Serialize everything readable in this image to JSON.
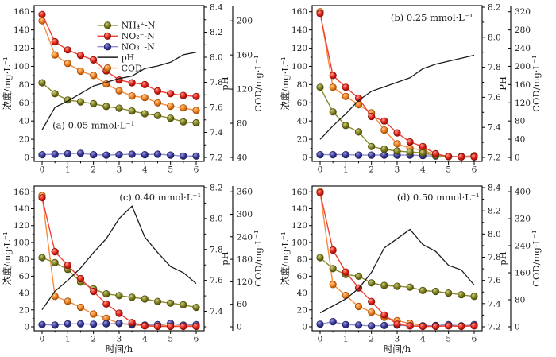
{
  "figure": {
    "background": "#ffffff",
    "colors": {
      "nh4": {
        "line": "#8a8a2b",
        "fill": "#7f7f1e",
        "edge": "#4c4c0a",
        "light": "#cdcd85"
      },
      "no2": {
        "line": "#ef4135",
        "fill": "#e32119",
        "edge": "#8c0f08",
        "light": "#ff9e8c"
      },
      "no3": {
        "line": "#8d8dd0",
        "fill": "#3a3a9c",
        "edge": "#1d1d5e",
        "light": "#9d9de0"
      },
      "cod": {
        "line": "#f68b3c",
        "fill": "#f48120",
        "edge": "#a04d05",
        "light": "#ffc98e"
      },
      "ph": {
        "line": "#1c1c1c"
      }
    }
  },
  "chart_data": {
    "type": "line",
    "x": [
      0,
      0.5,
      1,
      1.5,
      2,
      2.5,
      3,
      3.5,
      4,
      4.5,
      5,
      5.5,
      6
    ],
    "x_ticks": [
      0,
      1,
      2,
      3,
      4,
      5,
      6
    ],
    "conc_ticks": [
      0,
      20,
      40,
      60,
      80,
      100,
      120,
      140,
      160
    ],
    "conc_axis_max": 165,
    "legend_position": "inside panel (a), upper middle",
    "grid": false,
    "legend_items": [
      {
        "key": "nh4",
        "label": "NH₄⁺-N",
        "type": "marker-line"
      },
      {
        "key": "no2",
        "label": "NO₂⁻-N",
        "type": "marker-line"
      },
      {
        "key": "no3",
        "label": "NO₃⁻-N",
        "type": "marker-line"
      },
      {
        "key": "ph",
        "label": "pH",
        "type": "line"
      },
      {
        "key": "cod",
        "label": "COD",
        "type": "marker-line"
      }
    ],
    "panels": [
      {
        "id": "a",
        "title": "(a)  0.05 mmol·L⁻¹",
        "title_pos": {
          "x": 2.0,
          "conc": 32
        },
        "y_title": "浓度/mg·L⁻¹",
        "x_title": "",
        "ph_label": "pH",
        "cod_label": "COD/mg·L⁻¹",
        "legend": true,
        "ph_axis": {
          "min": 7.2,
          "max": 8.4,
          "ticks": [
            7.2,
            7.4,
            7.6,
            7.8,
            8.0,
            8.2,
            8.4
          ]
        },
        "cod_axis": {
          "min": 40,
          "max": 216,
          "ticks": [
            40,
            80,
            120,
            160,
            200
          ]
        },
        "series": {
          "nh4": [
            82,
            70,
            63,
            61,
            59,
            56,
            54,
            51,
            48,
            46,
            43,
            39,
            38
          ],
          "no2": [
            157,
            127,
            118,
            112,
            107,
            95,
            85,
            82,
            80,
            73,
            70,
            68,
            67
          ],
          "no3": [
            3,
            3.5,
            4,
            4.5,
            3,
            2.5,
            3,
            3.5,
            3,
            3.5,
            2.5,
            1.5,
            1.5
          ],
          "ph": [
            7.42,
            7.6,
            7.65,
            7.71,
            7.77,
            7.8,
            7.83,
            7.85,
            7.91,
            7.93,
            7.96,
            8.02,
            8.04
          ],
          "cod": [
            200,
            160,
            150,
            141,
            136,
            126,
            118,
            112,
            110,
            104,
            100,
            98,
            95
          ]
        }
      },
      {
        "id": "b",
        "title": "(b)  0.25 mmol·L⁻¹",
        "title_pos": {
          "x": 4.35,
          "conc": 150
        },
        "y_title": "浓度/mg·L⁻¹",
        "x_title": "",
        "ph_label": "PH",
        "cod_label": "COD/mg·L⁻¹",
        "legend": false,
        "ph_axis": {
          "min": 7.2,
          "max": 8.2,
          "ticks": [
            7.2,
            7.4,
            7.6,
            7.8,
            8.0,
            8.2
          ]
        },
        "cod_axis": {
          "min": 0,
          "max": 330,
          "ticks": [
            0,
            40,
            80,
            120,
            160,
            200,
            240,
            280,
            320
          ]
        },
        "series": {
          "nh4": [
            77,
            50,
            35,
            28,
            12,
            9,
            7,
            6,
            5,
            2,
            1,
            0.5,
            0.5
          ],
          "no2": [
            158,
            90,
            77,
            65,
            45,
            40,
            27,
            17,
            12,
            4,
            1,
            0.5,
            0.5
          ],
          "no3": [
            3,
            3,
            3,
            2.5,
            2.5,
            2.5,
            2.5,
            2.5,
            2,
            1.5,
            1,
            1,
            1
          ],
          "ph": [
            7.32,
            7.41,
            7.49,
            7.58,
            7.64,
            7.67,
            7.7,
            7.73,
            7.79,
            7.82,
            7.84,
            7.86,
            7.88
          ],
          "cod": [
            320,
            154,
            134,
            116,
            98,
            60,
            30,
            20,
            16,
            6,
            2,
            2,
            4
          ]
        }
      },
      {
        "id": "c",
        "title": "(c)  0.40 mmol·L⁻¹",
        "title_pos": {
          "x": 4.6,
          "conc": 150
        },
        "y_title": "浓度/mg·L⁻¹",
        "x_title": "时间/h",
        "ph_label": "pH",
        "cod_label": "COD/mg·L⁻¹",
        "legend": false,
        "ph_axis": {
          "min": 7.3,
          "max": 8.2,
          "ticks": [
            7.4,
            7.6,
            7.8,
            8.0,
            8.2
          ]
        },
        "cod_axis": {
          "min": 0,
          "max": 371,
          "ticks": [
            0,
            60,
            120,
            180,
            240,
            300,
            360
          ]
        },
        "series": {
          "nh4": [
            82,
            76,
            68,
            53,
            45,
            39,
            37,
            35,
            33,
            30,
            28,
            26,
            23
          ],
          "no2": [
            153,
            89,
            73,
            57,
            42,
            27,
            16,
            5,
            1,
            0.5,
            0.5,
            0.5,
            0.5
          ],
          "no3": [
            2.5,
            2,
            3.5,
            3.5,
            3,
            3.5,
            4,
            3,
            2,
            2.5,
            4,
            2,
            2.5
          ],
          "ph": [
            7.41,
            7.53,
            7.6,
            7.68,
            7.78,
            7.87,
            8.0,
            8.08,
            7.88,
            7.78,
            7.69,
            7.65,
            7.58
          ],
          "cod": [
            350,
            81,
            68,
            52,
            34,
            23,
            9,
            5,
            3,
            5,
            2,
            2,
            3
          ]
        }
      },
      {
        "id": "d",
        "title": "(d)  0.50 mmol·L⁻¹",
        "title_pos": {
          "x": 4.6,
          "conc": 150
        },
        "y_title": "浓度/mg·L⁻¹",
        "x_title": "时间/h",
        "ph_label": "pH",
        "cod_label": "COD/mg·L⁻¹",
        "legend": false,
        "ph_axis": {
          "min": 7.2,
          "max": 8.4,
          "ticks": [
            7.2,
            7.4,
            7.6,
            7.8,
            8.0,
            8.2,
            8.4
          ]
        },
        "cod_axis": {
          "min": 0,
          "max": 412,
          "ticks": [
            0,
            80,
            160,
            240,
            320,
            400
          ]
        },
        "series": {
          "nh4": [
            82,
            69,
            62,
            60,
            52,
            49,
            48,
            47,
            43,
            42,
            40,
            38,
            36
          ],
          "no2": [
            159,
            91,
            65,
            46,
            30,
            14,
            3,
            1,
            0.5,
            0.5,
            1,
            0.5,
            1
          ],
          "no3": [
            3,
            6,
            2.5,
            2,
            1,
            1.5,
            2,
            1,
            1,
            1.5,
            2.5,
            1,
            2.5
          ],
          "ph": [
            7.32,
            7.38,
            7.44,
            7.53,
            7.67,
            7.88,
            7.96,
            8.04,
            7.91,
            7.85,
            7.73,
            7.69,
            7.56
          ],
          "cod": [
            400,
            125,
            93,
            60,
            43,
            28,
            18,
            10,
            3,
            3,
            5,
            3,
            5
          ]
        }
      }
    ]
  }
}
